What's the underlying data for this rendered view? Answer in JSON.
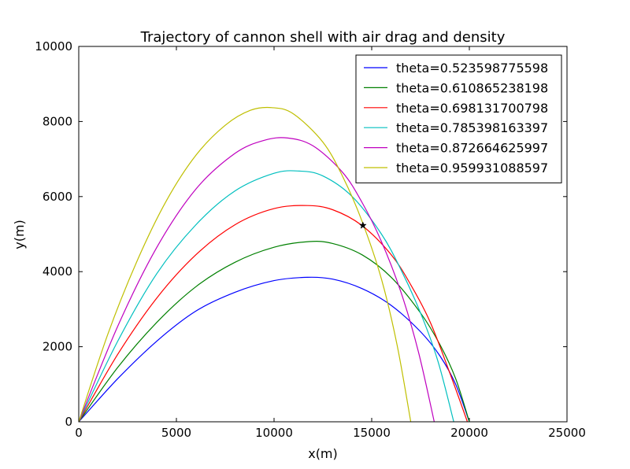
{
  "chart_data": {
    "type": "line",
    "title": "Trajectory of cannon shell with air drag and density",
    "xlabel": "x(m)",
    "ylabel": "y(m)",
    "xlim": [
      0,
      25000
    ],
    "ylim": [
      0,
      10000
    ],
    "xticks": [
      0,
      5000,
      10000,
      15000,
      20000,
      25000
    ],
    "yticks": [
      0,
      2000,
      4000,
      6000,
      8000,
      10000
    ],
    "xtick_labels": [
      "0",
      "5000",
      "10000",
      "15000",
      "20000",
      "25000"
    ],
    "ytick_labels": [
      "0",
      "2000",
      "4000",
      "6000",
      "8000",
      "10000"
    ],
    "grid": false,
    "legend_position": "top-right",
    "series": [
      {
        "name": "theta=0.523598775598",
        "color": "#0000ff",
        "points": [
          [
            0,
            0
          ],
          [
            2000,
            1150
          ],
          [
            4000,
            2150
          ],
          [
            6000,
            2950
          ],
          [
            8000,
            3450
          ],
          [
            10000,
            3760
          ],
          [
            11700,
            3850
          ],
          [
            13000,
            3800
          ],
          [
            14500,
            3550
          ],
          [
            16000,
            3100
          ],
          [
            17500,
            2400
          ],
          [
            18500,
            1750
          ],
          [
            19300,
            1000
          ],
          [
            20000,
            0
          ]
        ]
      },
      {
        "name": "theta=0.610865238198",
        "color": "#008000",
        "points": [
          [
            0,
            0
          ],
          [
            2000,
            1450
          ],
          [
            4000,
            2650
          ],
          [
            6000,
            3600
          ],
          [
            8000,
            4250
          ],
          [
            10000,
            4650
          ],
          [
            11800,
            4800
          ],
          [
            13000,
            4750
          ],
          [
            14500,
            4450
          ],
          [
            16000,
            3850
          ],
          [
            17500,
            2900
          ],
          [
            18500,
            2050
          ],
          [
            19300,
            1150
          ],
          [
            20000,
            0
          ]
        ]
      },
      {
        "name": "theta=0.698131700798",
        "color": "#ff0000",
        "points": [
          [
            0,
            0
          ],
          [
            2000,
            1800
          ],
          [
            4000,
            3300
          ],
          [
            6000,
            4450
          ],
          [
            8000,
            5250
          ],
          [
            10000,
            5680
          ],
          [
            11700,
            5760
          ],
          [
            13000,
            5650
          ],
          [
            14500,
            5230
          ],
          [
            16000,
            4450
          ],
          [
            17000,
            3650
          ],
          [
            18000,
            2650
          ],
          [
            19000,
            1300
          ],
          [
            19900,
            0
          ]
        ]
      },
      {
        "name": "theta=0.785398163397",
        "color": "#00bfbf",
        "points": [
          [
            0,
            0
          ],
          [
            2000,
            2150
          ],
          [
            4000,
            3950
          ],
          [
            6000,
            5250
          ],
          [
            8000,
            6150
          ],
          [
            10000,
            6620
          ],
          [
            11300,
            6680
          ],
          [
            12500,
            6550
          ],
          [
            14000,
            6000
          ],
          [
            15500,
            5000
          ],
          [
            16500,
            4050
          ],
          [
            17500,
            2900
          ],
          [
            18400,
            1600
          ],
          [
            19200,
            0
          ]
        ]
      },
      {
        "name": "theta=0.872664625997",
        "color": "#bf00bf",
        "points": [
          [
            0,
            0
          ],
          [
            2000,
            2550
          ],
          [
            4000,
            4650
          ],
          [
            6000,
            6200
          ],
          [
            8000,
            7150
          ],
          [
            9500,
            7500
          ],
          [
            10700,
            7560
          ],
          [
            12000,
            7350
          ],
          [
            13500,
            6650
          ],
          [
            14500,
            5850
          ],
          [
            15500,
            4800
          ],
          [
            16500,
            3450
          ],
          [
            17400,
            1850
          ],
          [
            18200,
            0
          ]
        ]
      },
      {
        "name": "theta=0.959931088597",
        "color": "#bfbf00",
        "points": [
          [
            0,
            0
          ],
          [
            1500,
            2350
          ],
          [
            3000,
            4300
          ],
          [
            4500,
            5900
          ],
          [
            6000,
            7100
          ],
          [
            7500,
            7900
          ],
          [
            8800,
            8300
          ],
          [
            9900,
            8370
          ],
          [
            11000,
            8200
          ],
          [
            12500,
            7450
          ],
          [
            13500,
            6550
          ],
          [
            14500,
            5350
          ],
          [
            15500,
            3800
          ],
          [
            16300,
            2050
          ],
          [
            17000,
            0
          ]
        ]
      }
    ],
    "marker": {
      "x": 14550,
      "y": 5230,
      "symbol": "star",
      "color": "#000000"
    }
  }
}
